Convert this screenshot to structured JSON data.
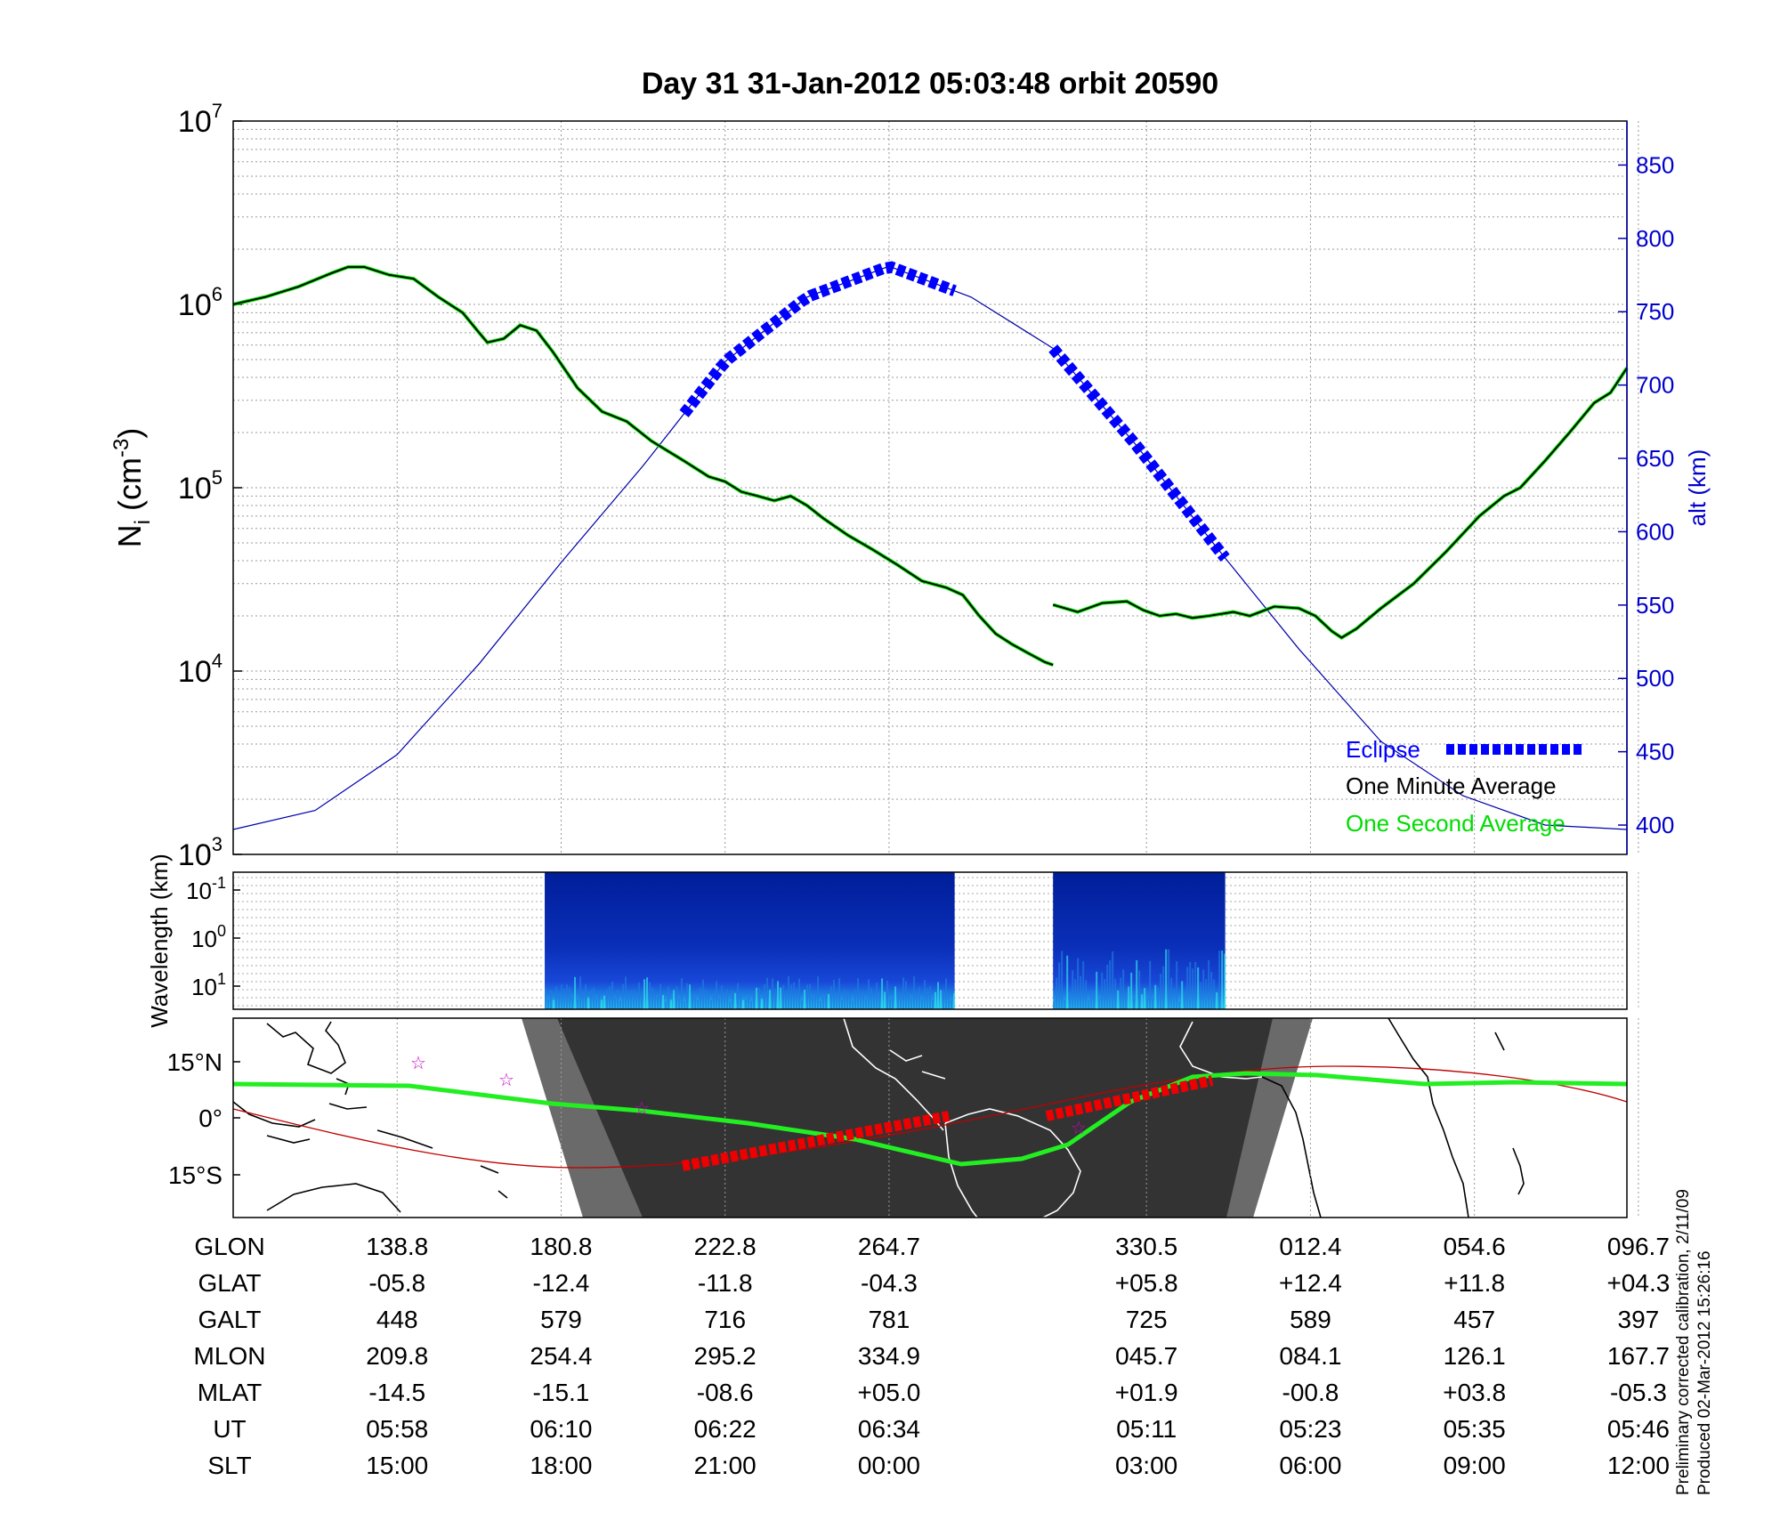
{
  "title": "Day 31  31-Jan-2012 05:03:48   orbit 20590",
  "colors": {
    "density_minute": "#000000",
    "density_second": "#00dd00",
    "altitude": "#0000aa",
    "eclipse": "#0000ff",
    "track_green": "#22ee22",
    "track_red": "#ee0000",
    "equator_line": "#c00000",
    "night": "#333333",
    "twilight": "#6a6a6a",
    "stars": "#cc00cc"
  },
  "chart_data": [
    {
      "type": "line",
      "name": "density",
      "ylabel_main": "N",
      "ylabel_sub": "i",
      "ylabel_unit_pre": " (cm",
      "ylabel_sup": "-3",
      "ylabel_unit_post": ")",
      "y_scale": "log",
      "ylim": [
        1000,
        10000000
      ],
      "yticks": [
        {
          "base": "10",
          "exp": "3",
          "value": 1000
        },
        {
          "base": "10",
          "exp": "4",
          "value": 10000
        },
        {
          "base": "10",
          "exp": "5",
          "value": 100000
        },
        {
          "base": "10",
          "exp": "6",
          "value": 1000000
        },
        {
          "base": "10",
          "exp": "7",
          "value": 10000000
        }
      ],
      "y2label": "alt (km)",
      "y2lim": [
        380,
        880
      ],
      "y2ticks": [
        400,
        450,
        500,
        550,
        600,
        650,
        700,
        750,
        800,
        850
      ],
      "x_index_range": [
        0,
        8.5
      ],
      "grid": true,
      "legend_position": "bottom-right",
      "legend": [
        {
          "label": "Eclipse",
          "color": "#0000ff",
          "style": "dashed-thick"
        },
        {
          "label": "One Minute Average",
          "color": "#000000",
          "style": "line"
        },
        {
          "label": "One Second Average",
          "color": "#00dd00",
          "style": "line"
        }
      ],
      "series": [
        {
          "name": "One Minute Average",
          "segments": [
            [
              [
                0,
                1000000
              ],
              [
                0.2,
                1100000
              ],
              [
                0.4,
                1250000
              ],
              [
                0.6,
                1480000
              ],
              [
                0.7,
                1600000
              ],
              [
                0.8,
                1600000
              ],
              [
                0.95,
                1450000
              ],
              [
                1.1,
                1380000
              ],
              [
                1.25,
                1100000
              ],
              [
                1.4,
                900000
              ],
              [
                1.5,
                700000
              ],
              [
                1.55,
                620000
              ],
              [
                1.65,
                650000
              ],
              [
                1.75,
                770000
              ],
              [
                1.85,
                720000
              ],
              [
                1.95,
                550000
              ],
              [
                2.1,
                350000
              ],
              [
                2.25,
                260000
              ],
              [
                2.4,
                230000
              ],
              [
                2.55,
                180000
              ],
              [
                2.75,
                140000
              ],
              [
                2.9,
                115000
              ],
              [
                3.0,
                108000
              ],
              [
                3.1,
                95000
              ],
              [
                3.2,
                90000
              ],
              [
                3.3,
                85000
              ],
              [
                3.4,
                90000
              ],
              [
                3.5,
                80000
              ],
              [
                3.6,
                68000
              ],
              [
                3.75,
                55000
              ],
              [
                3.9,
                46000
              ],
              [
                4.05,
                38000
              ],
              [
                4.2,
                31000
              ],
              [
                4.35,
                28500
              ],
              [
                4.45,
                26000
              ],
              [
                4.55,
                20000
              ],
              [
                4.65,
                16000
              ],
              [
                4.75,
                14000
              ],
              [
                4.85,
                12500
              ],
              [
                4.95,
                11200
              ],
              [
                5.0,
                10800
              ]
            ],
            [
              [
                5.0,
                23000
              ],
              [
                5.15,
                21000
              ],
              [
                5.3,
                23500
              ],
              [
                5.45,
                24000
              ],
              [
                5.55,
                21500
              ],
              [
                5.65,
                20000
              ],
              [
                5.75,
                20500
              ],
              [
                5.85,
                19500
              ],
              [
                5.95,
                20000
              ],
              [
                6.1,
                21000
              ],
              [
                6.2,
                20000
              ],
              [
                6.35,
                22500
              ],
              [
                6.5,
                22000
              ],
              [
                6.6,
                20000
              ],
              [
                6.7,
                16500
              ],
              [
                6.76,
                15200
              ],
              [
                6.85,
                17000
              ],
              [
                7.0,
                22000
              ],
              [
                7.2,
                30000
              ],
              [
                7.4,
                45000
              ],
              [
                7.6,
                70000
              ],
              [
                7.75,
                90000
              ],
              [
                7.85,
                100000
              ],
              [
                8.0,
                140000
              ],
              [
                8.15,
                200000
              ],
              [
                8.3,
                290000
              ],
              [
                8.4,
                330000
              ],
              [
                8.5,
                450000
              ]
            ]
          ]
        },
        {
          "name": "One Second Average",
          "segments": []
        },
        {
          "name": "Altitude",
          "axis": "right",
          "x": [
            0,
            0.5,
            1,
            1.5,
            2,
            2.5,
            3,
            3.5,
            4,
            4.5,
            5,
            5.5,
            6,
            6.5,
            7,
            7.5,
            8,
            8.5
          ],
          "values": [
            397,
            410,
            448,
            510,
            579,
            645,
            716,
            760,
            781,
            760,
            725,
            660,
            589,
            520,
            457,
            420,
            400,
            397
          ]
        }
      ],
      "eclipse_segments": [
        [
          2.75,
          4.4
        ],
        [
          5.0,
          6.05
        ]
      ]
    },
    {
      "type": "heatmap",
      "name": "spectrogram",
      "ylabel": "Wavelength (km)",
      "yticks": [
        {
          "base": "10",
          "exp": "-1"
        },
        {
          "base": "10",
          "exp": "0"
        },
        {
          "base": "10",
          "exp": "1"
        }
      ],
      "data_segments": [
        [
          1.9,
          4.4
        ],
        [
          5.0,
          6.05
        ]
      ],
      "colormap": "jet"
    },
    {
      "type": "map",
      "name": "ground-track",
      "yticks": [
        "15°N",
        "0°",
        "15°S"
      ],
      "ylim": [
        -25,
        25
      ]
    }
  ],
  "table": {
    "columns_x_index": [
      1,
      2,
      3,
      4,
      5.57,
      6.57,
      7.57,
      8.57
    ],
    "rows": [
      {
        "label": "GLON",
        "values": [
          "138.8",
          "180.8",
          "222.8",
          "264.7",
          "330.5",
          "012.4",
          "054.6",
          "096.7"
        ]
      },
      {
        "label": "GLAT",
        "values": [
          "-05.8",
          "-12.4",
          "-11.8",
          "-04.3",
          "+05.8",
          "+12.4",
          "+11.8",
          "+04.3"
        ]
      },
      {
        "label": "GALT",
        "values": [
          "448",
          "579",
          "716",
          "781",
          "725",
          "589",
          "457",
          "397"
        ]
      },
      {
        "label": "MLON",
        "values": [
          "209.8",
          "254.4",
          "295.2",
          "334.9",
          "045.7",
          "084.1",
          "126.1",
          "167.7"
        ]
      },
      {
        "label": "MLAT",
        "values": [
          "-14.5",
          "-15.1",
          "-08.6",
          "+05.0",
          "+01.9",
          "-00.8",
          "+03.8",
          "-05.3"
        ]
      },
      {
        "label": "UT",
        "values": [
          "05:58",
          "06:10",
          "06:22",
          "06:34",
          "05:11",
          "05:23",
          "05:35",
          "05:46"
        ]
      },
      {
        "label": "SLT",
        "values": [
          "15:00",
          "18:00",
          "21:00",
          "00:00",
          "03:00",
          "06:00",
          "09:00",
          "12:00"
        ]
      }
    ]
  },
  "footnote": {
    "line1": "Preliminary corrected calibration, 2/11/09",
    "line2": "Produced 02-Mar-2012 15:26:16"
  }
}
